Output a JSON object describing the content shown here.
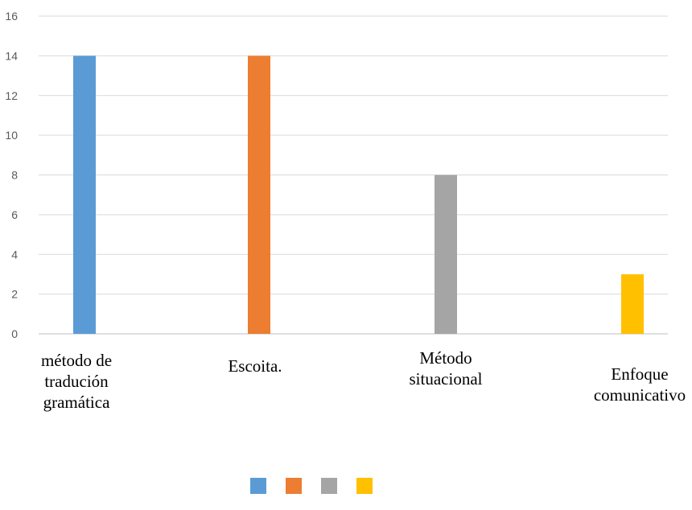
{
  "chart_data": {
    "type": "bar",
    "title": "",
    "xlabel": "",
    "ylabel": "",
    "ylim": [
      0,
      16
    ],
    "yticks": [
      0,
      2,
      4,
      6,
      8,
      10,
      12,
      14,
      16
    ],
    "grid": true,
    "legend": "bottom",
    "categories": [
      [
        "método de",
        "tradución",
        "gramática"
      ],
      [
        "Escoita."
      ],
      [
        "Método",
        "situacional"
      ],
      [
        "Enfoque",
        "comunicativo"
      ]
    ],
    "values": [
      14,
      14,
      8,
      3
    ],
    "colors": [
      "#5B9BD5",
      "#ED7D31",
      "#A5A5A5",
      "#FFC000"
    ]
  }
}
